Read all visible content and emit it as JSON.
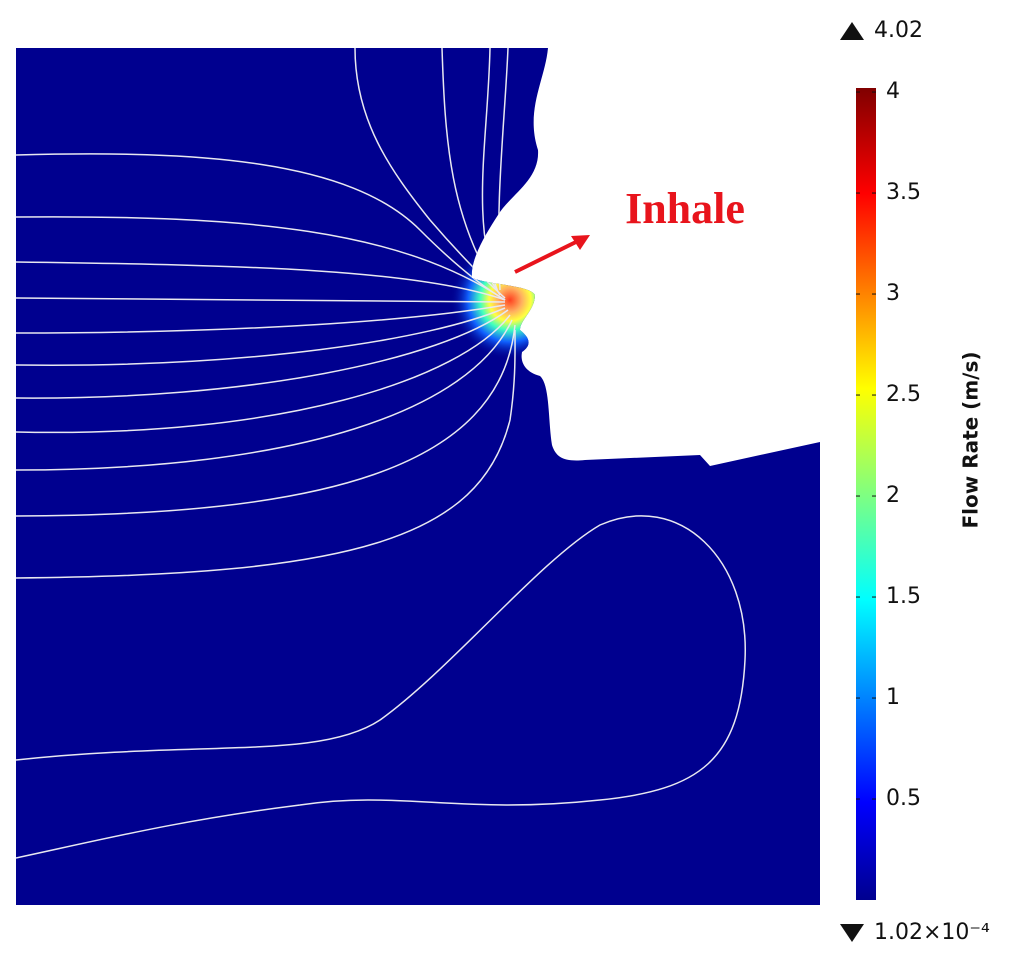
{
  "chart_data": {
    "type": "contour",
    "annotation": "Inhale",
    "colorbar": {
      "label": "Flow Rate (m/s)",
      "clim": [
        0.000102,
        4.02
      ],
      "ticks": [
        0.5,
        1,
        1.5,
        2,
        2.5,
        3,
        3.5,
        4
      ],
      "max": 4.02,
      "min": {
        "value": 0.000102,
        "label": "1.02×10⁻⁴"
      }
    }
  }
}
